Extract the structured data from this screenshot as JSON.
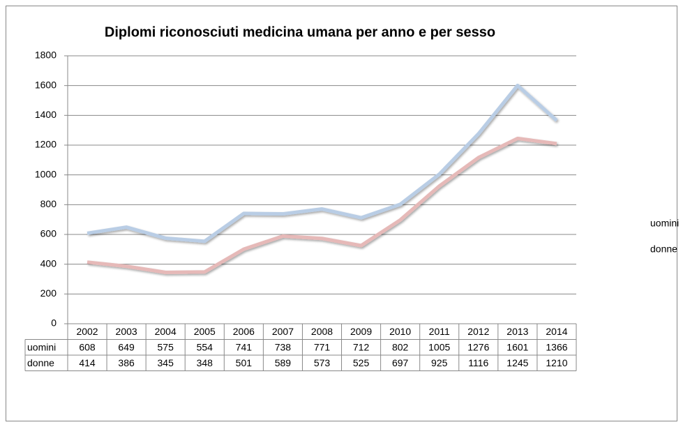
{
  "chart_data": {
    "type": "line",
    "title": "Diplomi riconosciuti medicina umana per anno e per sesso",
    "categories": [
      "2002",
      "2003",
      "2004",
      "2005",
      "2006",
      "2007",
      "2008",
      "2009",
      "2010",
      "2011",
      "2012",
      "2013",
      "2014"
    ],
    "series": [
      {
        "name": "uomini",
        "color": "#b9cde5",
        "values": [
          608,
          649,
          575,
          554,
          741,
          738,
          771,
          712,
          802,
          1005,
          1276,
          1601,
          1366
        ]
      },
      {
        "name": "donne",
        "color": "#e6b9b8",
        "values": [
          414,
          386,
          345,
          348,
          501,
          589,
          573,
          525,
          697,
          925,
          1116,
          1245,
          1210
        ]
      }
    ],
    "ylim": [
      0,
      1800
    ],
    "yticks": [
      0,
      200,
      400,
      600,
      800,
      1000,
      1200,
      1400,
      1600,
      1800
    ],
    "grid": true,
    "legend": "right",
    "data_table": true
  }
}
